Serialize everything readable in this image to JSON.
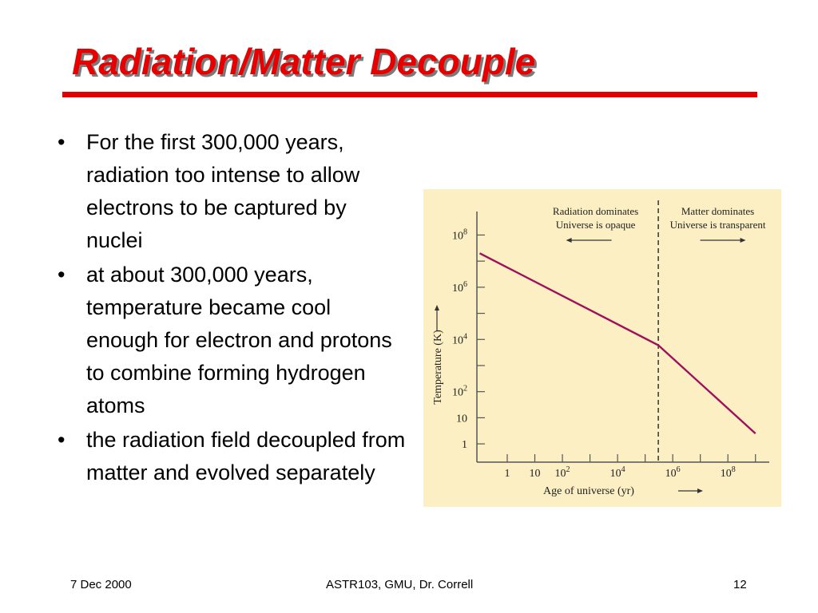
{
  "slide": {
    "title": "Radiation/Matter Decouple",
    "bullets": [
      "For the first 300,000 years, radiation too intense to allow electrons to be captured by nuclei",
      "at about 300,000 years, temperature became cool enough for electron and protons to combine forming hydrogen atoms",
      "the radiation field decoupled from matter and evolved separately"
    ],
    "footer": {
      "date": "7 Dec 2000",
      "course": "ASTR103, GMU, Dr. Correll",
      "page": "12"
    }
  },
  "chart_data": {
    "type": "line",
    "xlabel": "Age of universe (yr)",
    "ylabel": "Temperature (K)",
    "x_scale": "log",
    "y_scale": "log",
    "x_ticks": [
      {
        "value": 1,
        "base": "1",
        "exp": ""
      },
      {
        "value": 10,
        "base": "10",
        "exp": ""
      },
      {
        "value": 100,
        "base": "10",
        "exp": "2"
      },
      {
        "value": 10000,
        "base": "10",
        "exp": "4"
      },
      {
        "value": 1000000,
        "base": "10",
        "exp": "6"
      },
      {
        "value": 100000000,
        "base": "10",
        "exp": "8"
      }
    ],
    "y_ticks": [
      {
        "value": 1,
        "base": "1",
        "exp": ""
      },
      {
        "value": 10,
        "base": "10",
        "exp": ""
      },
      {
        "value": 100,
        "base": "10",
        "exp": "2"
      },
      {
        "value": 10000,
        "base": "10",
        "exp": "4"
      },
      {
        "value": 1000000,
        "base": "10",
        "exp": "6"
      },
      {
        "value": 100000000,
        "base": "10",
        "exp": "8"
      }
    ],
    "series": [
      {
        "points": [
          [
            0.1,
            20000000
          ],
          [
            300000,
            6000
          ],
          [
            1000000000,
            2.5
          ]
        ]
      }
    ],
    "decoupling_x": 300000,
    "regions": [
      {
        "line1": "Radiation dominates",
        "line2": "Universe is opaque",
        "arrow": "left"
      },
      {
        "line1": "Matter dominates",
        "line2": "Universe is transparent",
        "arrow": "right"
      }
    ],
    "colors": {
      "curve": "#a0105a",
      "background": "#fcefc4",
      "axes": "#555555"
    }
  }
}
